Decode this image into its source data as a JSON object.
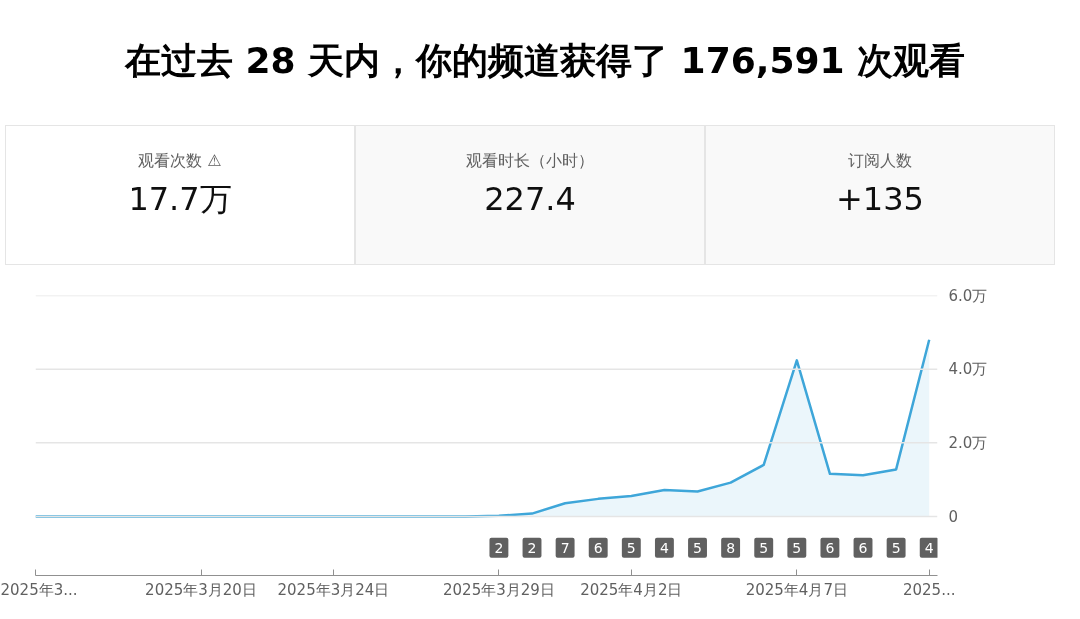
{
  "chart_data": {
    "type": "area",
    "title": "在过去 28 天内，你的频道获得了 176,591 次观看",
    "x": [
      "2025-03-15",
      "2025-03-16",
      "2025-03-17",
      "2025-03-18",
      "2025-03-19",
      "2025-03-20",
      "2025-03-21",
      "2025-03-22",
      "2025-03-23",
      "2025-03-24",
      "2025-03-25",
      "2025-03-26",
      "2025-03-27",
      "2025-03-28",
      "2025-03-29",
      "2025-03-30",
      "2025-03-31",
      "2025-04-01",
      "2025-04-02",
      "2025-04-03",
      "2025-04-04",
      "2025-04-05",
      "2025-04-06",
      "2025-04-07",
      "2025-04-08",
      "2025-04-09",
      "2025-04-10",
      "2025-04-11"
    ],
    "series": [
      {
        "color": "#3ea6d9",
        "values": [
          0,
          0,
          0,
          0,
          0,
          0,
          0,
          0,
          0,
          0,
          0,
          0,
          0,
          0,
          0.02,
          0.08,
          0.36,
          0.48,
          0.56,
          0.72,
          0.68,
          0.92,
          1.4,
          4.24,
          1.16,
          1.12,
          1.28,
          4.8
        ]
      }
    ],
    "xlim": [
      "2025-03-15",
      "2025-04-11T06:00"
    ],
    "xticks": [
      {
        "value": "2025-03-15",
        "label": "2025年3..."
      },
      {
        "value": "2025-03-20",
        "label": "2025年3月20日"
      },
      {
        "value": "2025-03-24",
        "label": "2025年3月24日"
      },
      {
        "value": "2025-03-29",
        "label": "2025年3月29日"
      },
      {
        "value": "2025-04-02",
        "label": "2025年4月2日"
      },
      {
        "value": "2025-04-07",
        "label": "2025年4月7日"
      },
      {
        "value": "2025-04-11",
        "label": "2025..."
      }
    ],
    "ylim": [
      -1.6,
      6
    ],
    "yticks": [
      {
        "value": 0,
        "label": "0"
      },
      {
        "value": 2,
        "label": "2.0万"
      },
      {
        "value": 4,
        "label": "4.0万"
      },
      {
        "value": 6,
        "label": "6.0万"
      }
    ],
    "grid": "y",
    "annotations": [
      "观看次数 ⚠",
      "17.7万",
      "观看时长（小时）",
      "227.4",
      "订阅人数",
      "+135",
      {
        "text": "2",
        "x": "2025-03-29",
        "y": -0.85
      },
      {
        "text": "2",
        "x": "2025-03-30",
        "y": -0.85
      },
      {
        "text": "7",
        "x": "2025-03-31",
        "y": -0.85
      },
      {
        "text": "6",
        "x": "2025-04-01",
        "y": -0.85
      },
      {
        "text": "5",
        "x": "2025-04-02",
        "y": -0.85
      },
      {
        "text": "4",
        "x": "2025-04-03",
        "y": -0.85
      },
      {
        "text": "5",
        "x": "2025-04-04",
        "y": -0.85
      },
      {
        "text": "8",
        "x": "2025-04-05",
        "y": -0.85
      },
      {
        "text": "5",
        "x": "2025-04-06",
        "y": -0.85
      },
      {
        "text": "5",
        "x": "2025-04-07",
        "y": -0.85
      },
      {
        "text": "6",
        "x": "2025-04-08",
        "y": -0.85
      },
      {
        "text": "6",
        "x": "2025-04-09",
        "y": -0.85
      },
      {
        "text": "5",
        "x": "2025-04-10",
        "y": -0.85
      },
      {
        "text": "4",
        "x": "2025-04-11",
        "y": -0.85
      }
    ]
  }
}
